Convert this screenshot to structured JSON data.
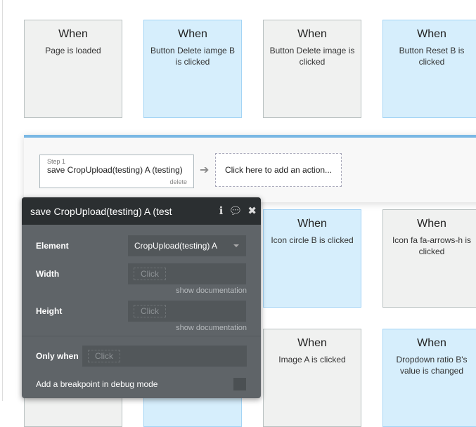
{
  "cards": [
    {
      "when": "When",
      "desc": "Page is loaded",
      "color": "gray"
    },
    {
      "when": "When",
      "desc": "Button Delete iamge B is clicked",
      "color": "blue"
    },
    {
      "when": "When",
      "desc": "Button Delete image is clicked",
      "color": "gray"
    },
    {
      "when": "When",
      "desc": "Button Reset B is clicked",
      "color": "blue"
    },
    {
      "when": "When",
      "desc": "Icon circle B is clicked",
      "color": "blue"
    },
    {
      "when": "When",
      "desc": "Icon fa fa-arrows-h is clicked",
      "color": "gray"
    },
    {
      "when": "When",
      "desc": "Image A is clicked",
      "color": "gray"
    },
    {
      "when": "When",
      "desc": "Dropdown ratio B's value is changed",
      "color": "blue"
    }
  ],
  "workflow": {
    "step_label": "Step 1",
    "step_name": "save CropUpload(testing) A (testing)",
    "delete": "delete",
    "add_action": "Click here to add an action..."
  },
  "panel": {
    "title": "save CropUpload(testing) A (test",
    "element_label": "Element",
    "element_value": "CropUpload(testing) A",
    "width_label": "Width",
    "height_label": "Height",
    "click": "Click",
    "show_doc": "show documentation",
    "only_when": "Only when",
    "breakpoint": "Add a breakpoint in debug mode"
  },
  "colors": {
    "accent": "#7ab8e4",
    "panel_header": "#2b2f31",
    "panel_body": "#5f6468"
  }
}
